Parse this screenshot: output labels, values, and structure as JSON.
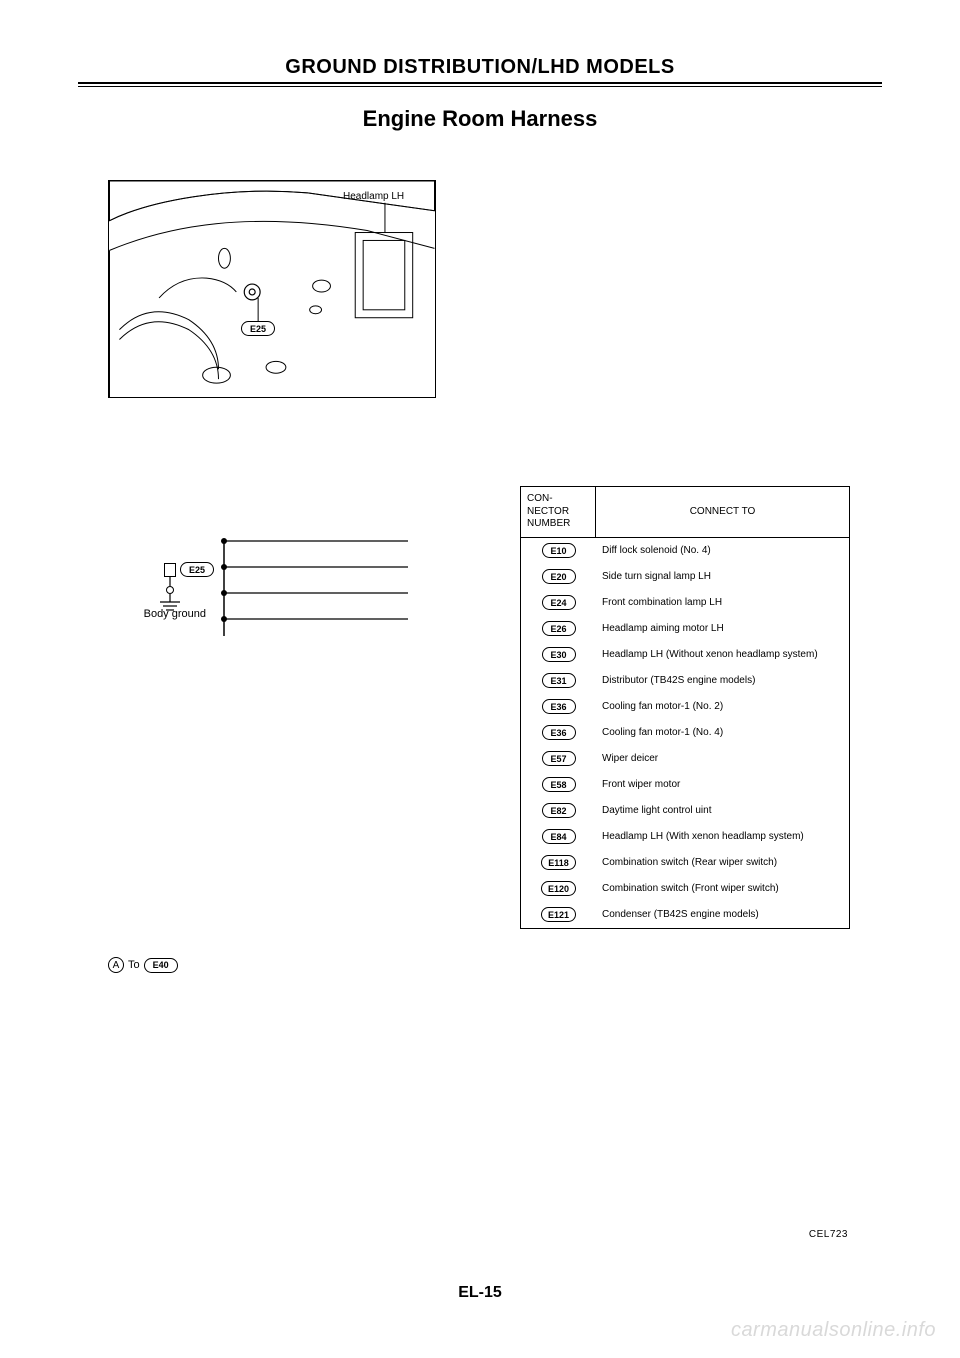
{
  "header": {
    "section": "GROUND DISTRIBUTION/LHD MODELS",
    "title": "Engine Room Harness"
  },
  "illustration": {
    "headlamp_label": "Headlamp LH",
    "connector_e25": "E25"
  },
  "diagram": {
    "body_ground_label": "Body ground",
    "e25_label": "E25",
    "to_letter": "A",
    "to_text": "To",
    "to_connector": "E40"
  },
  "table": {
    "header_a_line1": "CON-",
    "header_a_line2": "NECTOR",
    "header_a_line3": "NUMBER",
    "header_b": "CONNECT TO",
    "rows": [
      {
        "num": "E10",
        "to": "Diff lock solenoid (No. 4)"
      },
      {
        "num": "E20",
        "to": "Side turn signal lamp LH"
      },
      {
        "num": "E24",
        "to": "Front combination lamp LH"
      },
      {
        "num": "E26",
        "to": "Headlamp aiming motor LH"
      },
      {
        "num": "E30",
        "to": "Headlamp LH (Without xenon headlamp system)"
      },
      {
        "num": "E31",
        "to": "Distributor (TB42S engine models)"
      },
      {
        "num": "E36",
        "to": "Cooling fan motor-1 (No. 2)"
      },
      {
        "num": "E36",
        "to": "Cooling fan motor-1 (No. 4)"
      },
      {
        "num": "E57",
        "to": "Wiper deicer"
      },
      {
        "num": "E58",
        "to": "Front wiper motor"
      },
      {
        "num": "E82",
        "to": "Daytime light control uint"
      },
      {
        "num": "E84",
        "to": "Headlamp LH (With xenon headlamp system)"
      },
      {
        "num": "E118",
        "to": "Combination switch (Rear wiper switch)"
      },
      {
        "num": "E120",
        "to": "Combination switch (Front wiper switch)"
      },
      {
        "num": "E121",
        "to": "Condenser (TB42S engine models)"
      }
    ]
  },
  "footer": {
    "code": "CEL723",
    "page": "EL-15",
    "watermark": "carmanualsonline.info"
  }
}
